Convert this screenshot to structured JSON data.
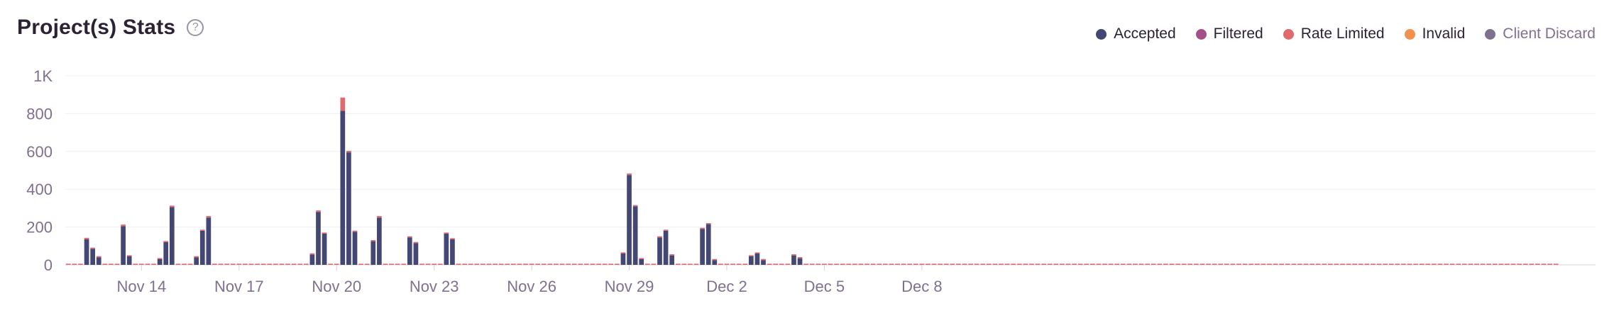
{
  "header": {
    "title": "Project(s) Stats",
    "help_icon": "question-circle-icon"
  },
  "legend": [
    {
      "label": "Accepted",
      "color": "#444674"
    },
    {
      "label": "Filtered",
      "color": "#a3508a"
    },
    {
      "label": "Rate Limited",
      "color": "#e16a6e"
    },
    {
      "label": "Invalid",
      "color": "#f0924e"
    },
    {
      "label": "Client Discard",
      "color": "#80708f"
    }
  ],
  "chart_data": {
    "type": "bar",
    "stacked": true,
    "title": "Project(s) Stats",
    "ylim": [
      0,
      1000
    ],
    "y_ticks": [
      "0",
      "200",
      "400",
      "600",
      "800",
      "1K"
    ],
    "x_ticks": [
      "Nov 14",
      "Nov 17",
      "Nov 20",
      "Nov 23",
      "Nov 26",
      "Nov 29",
      "Dec 2",
      "Dec 5",
      "Dec 8"
    ],
    "x_tick_bar_index": [
      12,
      28,
      44,
      60,
      76,
      92,
      108,
      124,
      140
    ],
    "grid": true,
    "legend_position": "top-right",
    "series": [
      {
        "name": "Accepted",
        "values": [
          0,
          0,
          0,
          135,
          85,
          40,
          0,
          0,
          0,
          205,
          45,
          0,
          0,
          0,
          0,
          30,
          120,
          305,
          0,
          0,
          0,
          40,
          180,
          250,
          0,
          0,
          0,
          0,
          0,
          0,
          0,
          0,
          0,
          0,
          0,
          0,
          0,
          0,
          0,
          0,
          55,
          280,
          165,
          0,
          0,
          815,
          595,
          175,
          0,
          0,
          125,
          250,
          0,
          0,
          0,
          0,
          145,
          115,
          0,
          0,
          0,
          0,
          165,
          135,
          0,
          0,
          0,
          0,
          0,
          0,
          0,
          0,
          0,
          0,
          0,
          0,
          0,
          0,
          0,
          0,
          0,
          0,
          0,
          0,
          0,
          0,
          0,
          0,
          0,
          0,
          0,
          60,
          475,
          310,
          30,
          0,
          0,
          145,
          180,
          50,
          0,
          0,
          0,
          0,
          190,
          215,
          25,
          0,
          0,
          0,
          0,
          0,
          45,
          60,
          25,
          0,
          0,
          0,
          0,
          50,
          35,
          0,
          0,
          0,
          0,
          0,
          0,
          0,
          0,
          0,
          0,
          0,
          0,
          0,
          0,
          0,
          0,
          0,
          0,
          0,
          0,
          0,
          0,
          0,
          0,
          0,
          0,
          0,
          0,
          0,
          0,
          0,
          0,
          0,
          0,
          0,
          0,
          0,
          0,
          0,
          0,
          0,
          0,
          0,
          0,
          0,
          0,
          0,
          0,
          0,
          0,
          0,
          0,
          0,
          0,
          0,
          0,
          0,
          0,
          0,
          0,
          0,
          0,
          0,
          0,
          0,
          0,
          0,
          0,
          0,
          0,
          0,
          0,
          0,
          0,
          0,
          0,
          0,
          0,
          0,
          0,
          0,
          0,
          0,
          0,
          0,
          0,
          0,
          0,
          0,
          0,
          0,
          0,
          0,
          0,
          0,
          0,
          0,
          0,
          0,
          0,
          0,
          0,
          0,
          0,
          0,
          0,
          0,
          0,
          0,
          0,
          0,
          0,
          0,
          0,
          0,
          0,
          0,
          0,
          0,
          0,
          0,
          0,
          0,
          0,
          0,
          0,
          0,
          0,
          0,
          0
        ],
        "color": "#444674"
      },
      {
        "name": "Rate Limited",
        "values": [
          6,
          6,
          6,
          8,
          6,
          6,
          6,
          6,
          6,
          8,
          6,
          6,
          6,
          6,
          6,
          6,
          6,
          8,
          6,
          6,
          6,
          6,
          6,
          8,
          6,
          6,
          6,
          6,
          6,
          6,
          6,
          6,
          6,
          6,
          6,
          6,
          6,
          6,
          6,
          6,
          6,
          8,
          6,
          6,
          6,
          70,
          8,
          6,
          6,
          6,
          6,
          8,
          6,
          6,
          6,
          6,
          6,
          6,
          6,
          6,
          6,
          6,
          6,
          6,
          6,
          6,
          6,
          6,
          6,
          6,
          6,
          6,
          6,
          6,
          6,
          6,
          6,
          6,
          6,
          6,
          6,
          6,
          6,
          6,
          6,
          6,
          6,
          6,
          6,
          6,
          6,
          6,
          8,
          6,
          6,
          6,
          6,
          6,
          6,
          6,
          6,
          6,
          6,
          6,
          6,
          6,
          6,
          6,
          6,
          6,
          6,
          6,
          6,
          6,
          6,
          6,
          6,
          6,
          6,
          6,
          6,
          6,
          6,
          6,
          6,
          6,
          6,
          6,
          6,
          6,
          6,
          6,
          6,
          6,
          6,
          6,
          6,
          6,
          6,
          6,
          6,
          6,
          6,
          6,
          6,
          6,
          6,
          6,
          6,
          6,
          6,
          6,
          6,
          6,
          6,
          6,
          6,
          6,
          6,
          6,
          6,
          6,
          6,
          6,
          6,
          6,
          6,
          6,
          6,
          6,
          6,
          6,
          6,
          6,
          6,
          6,
          6,
          6,
          6,
          6,
          6,
          6,
          6,
          6,
          6,
          6,
          6,
          6,
          6,
          6,
          6,
          6,
          6,
          6,
          6,
          6,
          6,
          6,
          6,
          6,
          6,
          6,
          6,
          6,
          6,
          6,
          6,
          6,
          6,
          6,
          6,
          6,
          6,
          6,
          6,
          6,
          6,
          6,
          6,
          6,
          6,
          6,
          6,
          6,
          6,
          6,
          6,
          6,
          6,
          6,
          6,
          6,
          6,
          6,
          6,
          6,
          6,
          6,
          6,
          6,
          6,
          6,
          6,
          6,
          6
        ],
        "color": "#e16a6e"
      }
    ]
  }
}
